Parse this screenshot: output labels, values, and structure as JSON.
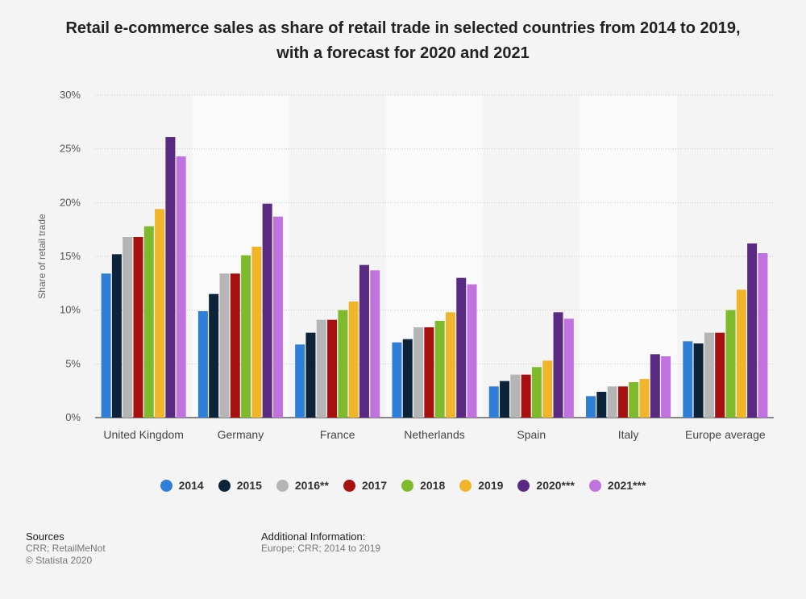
{
  "chart_data": {
    "type": "bar",
    "title": "Retail e-commerce sales as share of retail trade in selected countries from 2014 to 2019, with a forecast for 2020 and 2021",
    "ylabel": "Share of retail trade",
    "xlabel": "",
    "ylim": [
      0,
      30
    ],
    "yticks": [
      "0%",
      "5%",
      "10%",
      "15%",
      "20%",
      "25%",
      "30%"
    ],
    "ytick_values": [
      0,
      5,
      10,
      15,
      20,
      25,
      30
    ],
    "categories": [
      "United Kingdom",
      "Germany",
      "France",
      "Netherlands",
      "Spain",
      "Italy",
      "Europe average"
    ],
    "grid": true,
    "legend_position": "bottom",
    "series": [
      {
        "name": "2014",
        "color": "#2f7ed8",
        "values": [
          13.4,
          9.9,
          6.8,
          7.0,
          2.9,
          2.0,
          7.1
        ]
      },
      {
        "name": "2015",
        "color": "#0d233a",
        "values": [
          15.2,
          11.5,
          7.9,
          7.3,
          3.4,
          2.4,
          6.9
        ]
      },
      {
        "name": "2016**",
        "color": "#b5b5b5",
        "values": [
          16.8,
          13.4,
          9.1,
          8.4,
          4.0,
          2.9,
          7.9
        ]
      },
      {
        "name": "2017",
        "color": "#a6100e",
        "values": [
          16.8,
          13.4,
          9.1,
          8.4,
          4.0,
          2.9,
          7.9
        ]
      },
      {
        "name": "2018",
        "color": "#7fba2c",
        "values": [
          17.8,
          15.1,
          10.0,
          9.0,
          4.7,
          3.3,
          10.0
        ]
      },
      {
        "name": "2019",
        "color": "#f0b52a",
        "values": [
          19.4,
          15.9,
          10.8,
          9.8,
          5.3,
          3.6,
          11.9
        ]
      },
      {
        "name": "2020***",
        "color": "#5a2a83",
        "values": [
          26.1,
          19.9,
          14.2,
          13.0,
          9.8,
          5.9,
          16.2
        ]
      },
      {
        "name": "2021***",
        "color": "#c073df",
        "values": [
          24.3,
          18.7,
          13.7,
          12.4,
          9.2,
          5.7,
          15.3
        ]
      }
    ]
  },
  "footer": {
    "sources_heading": "Sources",
    "sources_text": "CRR; RetailMeNot",
    "copyright": "© Statista 2020",
    "additional_heading": "Additional Information:",
    "additional_text": "Europe; CRR; 2014 to 2019"
  }
}
